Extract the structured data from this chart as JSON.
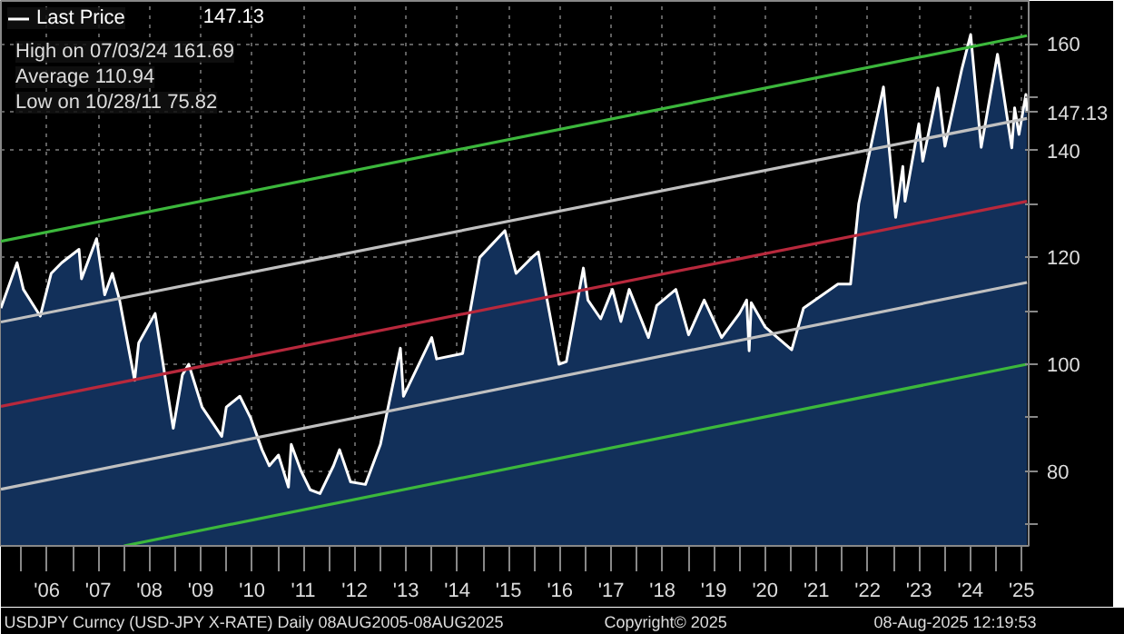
{
  "chart_data": {
    "type": "area",
    "title": "USDJPY Curncy (USD-JPY X-RATE)  Daily 08AUG2005-08AUG2025",
    "annotations": [
      "147.13",
      "High on 07/03/24 161.69",
      "Average 110.94",
      "Low on 10/28/11 75.82",
      "Copyright© 2025",
      "08-Aug-2025 12:19:53"
    ],
    "xlim": [
      "2005-08-08",
      "2025-08-20"
    ],
    "ylim": [
      66,
      168
    ],
    "xticks": [
      {
        "value": "2006-01-01",
        "label": null
      },
      {
        "value": "2006-07-01",
        "label": "'06"
      },
      {
        "value": "2007-01-01",
        "label": null
      },
      {
        "value": "2007-07-01",
        "label": "'07"
      },
      {
        "value": "2008-01-01",
        "label": null
      },
      {
        "value": "2008-07-01",
        "label": "'08"
      },
      {
        "value": "2009-01-01",
        "label": null
      },
      {
        "value": "2009-07-01",
        "label": "'09"
      },
      {
        "value": "2010-01-01",
        "label": null
      },
      {
        "value": "2010-07-01",
        "label": "'10"
      },
      {
        "value": "2011-01-01",
        "label": null
      },
      {
        "value": "2011-07-01",
        "label": "'11"
      },
      {
        "value": "2012-01-01",
        "label": null
      },
      {
        "value": "2012-07-01",
        "label": "'12"
      },
      {
        "value": "2013-01-01",
        "label": null
      },
      {
        "value": "2013-07-01",
        "label": "'13"
      },
      {
        "value": "2014-01-01",
        "label": null
      },
      {
        "value": "2014-07-01",
        "label": "'14"
      },
      {
        "value": "2015-01-01",
        "label": null
      },
      {
        "value": "2015-07-01",
        "label": "'15"
      },
      {
        "value": "2016-01-01",
        "label": null
      },
      {
        "value": "2016-07-01",
        "label": "'16"
      },
      {
        "value": "2017-01-01",
        "label": null
      },
      {
        "value": "2017-07-01",
        "label": "'17"
      },
      {
        "value": "2018-01-01",
        "label": null
      },
      {
        "value": "2018-07-01",
        "label": "'18"
      },
      {
        "value": "2019-01-01",
        "label": null
      },
      {
        "value": "2019-07-01",
        "label": "'19"
      },
      {
        "value": "2020-01-01",
        "label": null
      },
      {
        "value": "2020-07-01",
        "label": "'20"
      },
      {
        "value": "2021-01-01",
        "label": null
      },
      {
        "value": "2021-07-01",
        "label": "'21"
      },
      {
        "value": "2022-01-01",
        "label": null
      },
      {
        "value": "2022-07-01",
        "label": "'22"
      },
      {
        "value": "2023-01-01",
        "label": null
      },
      {
        "value": "2023-07-01",
        "label": "'23"
      },
      {
        "value": "2024-01-01",
        "label": null
      },
      {
        "value": "2024-07-01",
        "label": "'24"
      },
      {
        "value": "2025-01-01",
        "label": null
      },
      {
        "value": "2025-07-01",
        "label": "'25"
      }
    ],
    "yticks": [
      {
        "value": 70,
        "label": null
      },
      80,
      {
        "value": 90,
        "label": null
      },
      100,
      {
        "value": 110,
        "label": null
      },
      120,
      {
        "value": 130,
        "label": null
      },
      140,
      147.13,
      {
        "value": 150,
        "label": null
      },
      160
    ],
    "grid": true,
    "legend": "top left",
    "series": [
      {
        "name": "Last Price",
        "color": "#12305a",
        "x": [
          "2005-08-08",
          "2005-12-01",
          "2006-01-15",
          "2006-05-15",
          "2006-08-01",
          "2006-10-15",
          "2007-02-15",
          "2007-03-05",
          "2007-06-20",
          "2007-08-17",
          "2007-10-10",
          "2007-12-01",
          "2008-03-17",
          "2008-04-15",
          "2008-08-10",
          "2008-10-24",
          "2008-12-17",
          "2009-02-20",
          "2009-04-06",
          "2009-07-10",
          "2009-11-27",
          "2009-12-30",
          "2010-04-05",
          "2010-06-20",
          "2010-09-10",
          "2010-11-01",
          "2011-01-05",
          "2011-03-17",
          "2011-04-06",
          "2011-06-15",
          "2011-08-19",
          "2011-10-28",
          "2012-02-01",
          "2012-03-15",
          "2012-06-01",
          "2012-09-15",
          "2012-12-31",
          "2013-05-22",
          "2013-06-13",
          "2013-12-31",
          "2014-02-04",
          "2014-08-08",
          "2014-12-08",
          "2015-06-05",
          "2015-08-24",
          "2015-12-15",
          "2016-01-29",
          "2016-06-24",
          "2016-08-16",
          "2016-12-15",
          "2017-01-16",
          "2017-04-17",
          "2017-07-10",
          "2017-09-08",
          "2017-11-06",
          "2018-03-23",
          "2018-05-21",
          "2018-10-04",
          "2019-01-03",
          "2019-04-24",
          "2019-08-26",
          "2019-12-31",
          "2020-02-20",
          "2020-03-09",
          "2020-03-24",
          "2020-06-30",
          "2021-01-06",
          "2021-03-31",
          "2021-12-01",
          "2022-03-01",
          "2022-04-28",
          "2022-06-15",
          "2022-10-21",
          "2023-01-16",
          "2023-03-08",
          "2023-03-24",
          "2023-06-30",
          "2023-07-28",
          "2023-11-13",
          "2024-01-02",
          "2024-04-29",
          "2024-07-03",
          "2024-09-16",
          "2025-01-10",
          "2025-04-22",
          "2025-05-12",
          "2025-06-12",
          "2025-07-31",
          "2025-08-08"
        ],
        "values": [
          110.5,
          119,
          114,
          109,
          117,
          119,
          121.5,
          116,
          123.5,
          113,
          117,
          112,
          97,
          104,
          109.5,
          97,
          88,
          98,
          100,
          92,
          86.5,
          92,
          94,
          90,
          84,
          81,
          83,
          77,
          85,
          80,
          76.5,
          75.8,
          81,
          84,
          78,
          77.5,
          85,
          103,
          94,
          105,
          101,
          102,
          120,
          125,
          117,
          120,
          121,
          100,
          100.5,
          118,
          112,
          108.5,
          114,
          108,
          114,
          105,
          111,
          114,
          105.5,
          112,
          105,
          109.5,
          112,
          102.5,
          111.5,
          107,
          102.7,
          110.5,
          115,
          115,
          130,
          136,
          151.9,
          127.5,
          137,
          130.5,
          145,
          138,
          151.7,
          140.8,
          155,
          161.7,
          140.6,
          158,
          140.5,
          148,
          143,
          150.5,
          147.1
        ]
      },
      {
        "type": "line",
        "color": "#3cb83c",
        "x": [
          "2005-08-08",
          "2025-08-08"
        ],
        "values": [
          123,
          161.5
        ]
      },
      {
        "type": "line",
        "color": "#c0c0c0",
        "x": [
          "2005-08-08",
          "2025-08-08"
        ],
        "values": [
          107.9,
          146
        ]
      },
      {
        "type": "line",
        "color": "#b8283c",
        "x": [
          "2005-08-08",
          "2025-08-08"
        ],
        "values": [
          92.1,
          130.5
        ]
      },
      {
        "type": "line",
        "color": "#c0c0c0",
        "x": [
          "2005-08-08",
          "2025-08-08"
        ],
        "values": [
          76.6,
          115.3
        ]
      },
      {
        "type": "line",
        "color": "#3cb83c",
        "x": [
          "2008-01-01",
          "2025-08-08"
        ],
        "values": [
          66,
          100
        ]
      }
    ]
  }
}
